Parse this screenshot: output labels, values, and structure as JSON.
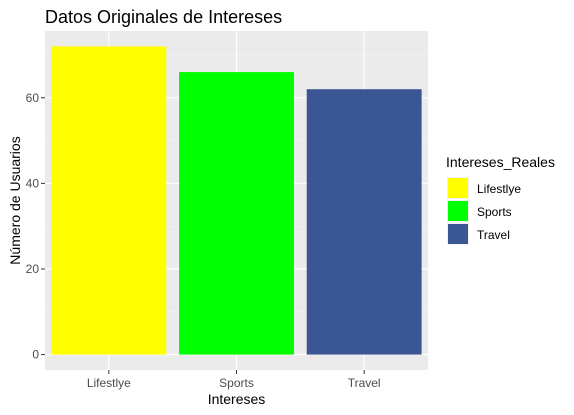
{
  "chart_data": {
    "type": "bar",
    "title": "Datos Originales de Intereses",
    "xlabel": "Intereses",
    "ylabel": "Número de Usuarios",
    "categories": [
      "Lifestlye",
      "Sports",
      "Travel"
    ],
    "values": [
      72,
      66,
      62
    ],
    "colors": [
      "#ffff00",
      "#00ff00",
      "#3a5794"
    ],
    "ylim": [
      -3.6,
      75.6
    ],
    "yticks": [
      0,
      20,
      40,
      60
    ],
    "grid": true,
    "legend": {
      "title": "Intereses_Reales",
      "placement": "right",
      "entries": [
        "Lifestlye",
        "Sports",
        "Travel"
      ]
    }
  }
}
